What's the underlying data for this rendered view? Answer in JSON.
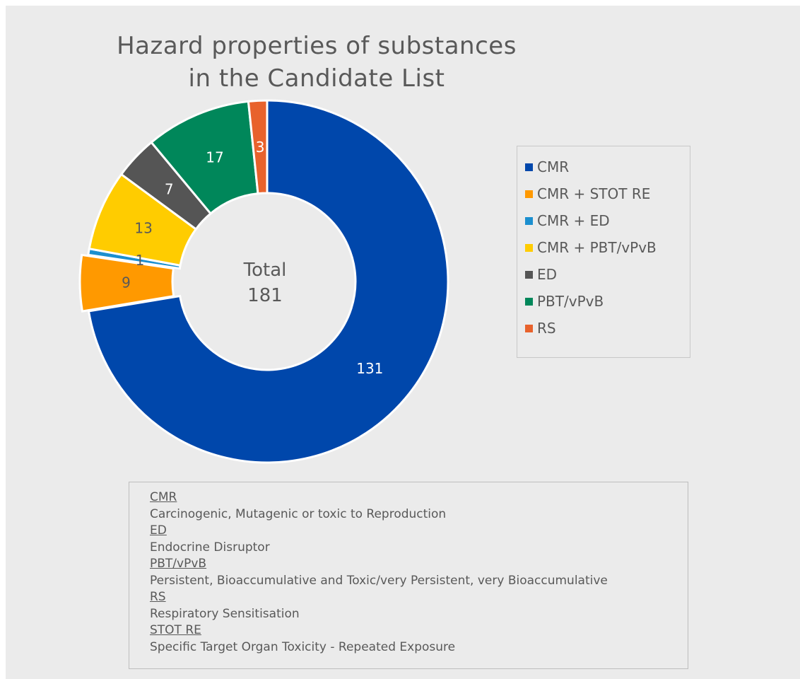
{
  "chart_data": {
    "type": "pie",
    "title": [
      "Hazard properties of substances",
      "in the Candidate List"
    ],
    "center_label": [
      "Total",
      "181"
    ],
    "categories": [
      "CMR",
      "CMR + STOT RE",
      "CMR + ED",
      "CMR + PBT/vPvB",
      "ED",
      "PBT/vPvB",
      "RS"
    ],
    "values": [
      131,
      9,
      1,
      13,
      7,
      17,
      3
    ],
    "colors": [
      "#0047ab",
      "#ff9900",
      "#1b8fcf",
      "#ffcc00",
      "#555555",
      "#00875a",
      "#e8622c"
    ],
    "label_colors": [
      "#ffffff",
      "#595959",
      "#595959",
      "#595959",
      "#ffffff",
      "#ffffff",
      "#ffffff"
    ],
    "exploded_slice": "CMR + STOT RE",
    "legend_position": "right",
    "style": "doughnut"
  },
  "glossary": [
    {
      "term": "CMR",
      "definition": "Carcinogenic, Mutagenic or toxic to Reproduction"
    },
    {
      "term": "ED",
      "definition": "Endocrine Disruptor"
    },
    {
      "term": "PBT/vPvB",
      "definition": "Persistent, Bioaccumulative and Toxic/very Persistent, very Bioaccumulative"
    },
    {
      "term": "RS",
      "definition": "Respiratory Sensitisation"
    },
    {
      "term": "STOT RE",
      "definition": "Specific Target Organ Toxicity - Repeated Exposure"
    }
  ]
}
